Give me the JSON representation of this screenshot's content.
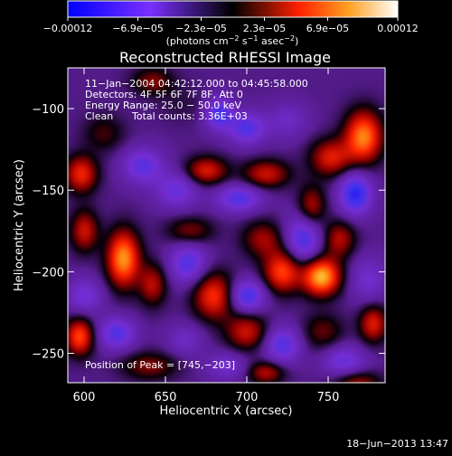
{
  "chart_data": {
    "type": "heatmap",
    "title": "Reconstructed RHESSI Image",
    "xlabel": "Heliocentric X (arcsec)",
    "ylabel": "Heliocentric Y (arcsec)",
    "xlim": [
      590,
      785
    ],
    "ylim": [
      -268,
      -75
    ],
    "x_ticks": [
      600,
      650,
      700,
      750
    ],
    "x_tick_labels": [
      "600",
      "650",
      "700",
      "750"
    ],
    "y_ticks": [
      -100,
      -150,
      -200,
      -250
    ],
    "y_tick_labels": [
      "−100",
      "−150",
      "−200",
      "−250"
    ],
    "colorbar": {
      "range": [
        -0.00012,
        0.00012
      ],
      "tick_values": [
        -0.00012,
        -6.9e-05,
        -2.3e-05,
        2.3e-05,
        6.9e-05,
        0.00012
      ],
      "tick_labels": [
        "−0.00012",
        "−6.9e−05",
        "−2.3e−05",
        "2.3e−05",
        "6.9e−05",
        "0.00012"
      ],
      "unit_prefix": "(photons cm",
      "unit_exp1": "−2",
      "unit_mid": " s",
      "unit_exp2": "−1",
      "unit_mid2": " asec",
      "unit_exp3": "−2",
      "unit_suffix": ")",
      "colormap": "rhessi-blue-purple-black-red-yellow-white"
    },
    "annotations": {
      "time_range": "11−Jan−2004 04:42:12.000 to 04:45:58.000",
      "detectors": "Detectors: 4F 5F 6F 7F 8F, Att 0",
      "energy_range": "Energy Range: 25.0 − 50.0 keV",
      "clean_label": "Clean",
      "total_counts": "Total counts: 3.36E+03",
      "peak_position": "Position of Peak = [745,−203]"
    },
    "peak": {
      "x": 745,
      "y": -203
    },
    "grid": false,
    "features": [
      {
        "x": 642,
        "y": -83,
        "amp": 0.35,
        "sx": 9,
        "sy": 6
      },
      {
        "x": 683,
        "y": -103,
        "amp": -0.55,
        "sx": 6,
        "sy": 7
      },
      {
        "x": 700,
        "y": -112,
        "amp": -0.5,
        "sx": 8,
        "sy": 7
      },
      {
        "x": 725,
        "y": -107,
        "amp": -0.25,
        "sx": 9,
        "sy": 8
      },
      {
        "x": 660,
        "y": -97,
        "amp": 0.1,
        "sx": 10,
        "sy": 8
      },
      {
        "x": 772,
        "y": -117,
        "amp": 0.85,
        "sx": 8,
        "sy": 11
      },
      {
        "x": 752,
        "y": -130,
        "amp": 0.55,
        "sx": 9,
        "sy": 8
      },
      {
        "x": 612,
        "y": -115,
        "amp": 0.25,
        "sx": 9,
        "sy": 8
      },
      {
        "x": 636,
        "y": -135,
        "amp": -0.45,
        "sx": 9,
        "sy": 8
      },
      {
        "x": 657,
        "y": -150,
        "amp": -0.4,
        "sx": 9,
        "sy": 8
      },
      {
        "x": 675,
        "y": -138,
        "amp": 0.55,
        "sx": 9,
        "sy": 6
      },
      {
        "x": 712,
        "y": -140,
        "amp": 0.5,
        "sx": 10,
        "sy": 6
      },
      {
        "x": 695,
        "y": -155,
        "amp": -0.5,
        "sx": 10,
        "sy": 6
      },
      {
        "x": 740,
        "y": -160,
        "amp": 0.45,
        "sx": 6,
        "sy": 9
      },
      {
        "x": 767,
        "y": -152,
        "amp": -0.7,
        "sx": 7,
        "sy": 9
      },
      {
        "x": 757,
        "y": -180,
        "amp": 0.45,
        "sx": 7,
        "sy": 8
      },
      {
        "x": 735,
        "y": -180,
        "amp": -0.55,
        "sx": 8,
        "sy": 11
      },
      {
        "x": 710,
        "y": -180,
        "amp": 0.4,
        "sx": 9,
        "sy": 8
      },
      {
        "x": 722,
        "y": -200,
        "amp": 0.7,
        "sx": 8,
        "sy": 9
      },
      {
        "x": 746,
        "y": -203,
        "amp": 1.0,
        "sx": 8,
        "sy": 8
      },
      {
        "x": 775,
        "y": -205,
        "amp": -0.3,
        "sx": 8,
        "sy": 10
      },
      {
        "x": 598,
        "y": -140,
        "amp": 0.6,
        "sx": 7,
        "sy": 8
      },
      {
        "x": 600,
        "y": -175,
        "amp": 0.5,
        "sx": 6,
        "sy": 9
      },
      {
        "x": 624,
        "y": -192,
        "amp": 0.9,
        "sx": 7,
        "sy": 12
      },
      {
        "x": 642,
        "y": -208,
        "amp": 0.45,
        "sx": 6,
        "sy": 9
      },
      {
        "x": 680,
        "y": -215,
        "amp": 0.65,
        "sx": 9,
        "sy": 10
      },
      {
        "x": 664,
        "y": -195,
        "amp": -0.5,
        "sx": 8,
        "sy": 9
      },
      {
        "x": 700,
        "y": -215,
        "amp": -0.6,
        "sx": 8,
        "sy": 7
      },
      {
        "x": 665,
        "y": -175,
        "amp": 0.35,
        "sx": 10,
        "sy": 6
      },
      {
        "x": 600,
        "y": -215,
        "amp": -0.35,
        "sx": 8,
        "sy": 8
      },
      {
        "x": 597,
        "y": -240,
        "amp": 0.7,
        "sx": 6,
        "sy": 8
      },
      {
        "x": 620,
        "y": -238,
        "amp": -0.5,
        "sx": 8,
        "sy": 7
      },
      {
        "x": 640,
        "y": -258,
        "amp": 0.35,
        "sx": 12,
        "sy": 6
      },
      {
        "x": 700,
        "y": -237,
        "amp": 0.5,
        "sx": 9,
        "sy": 8
      },
      {
        "x": 722,
        "y": -245,
        "amp": -0.5,
        "sx": 8,
        "sy": 8
      },
      {
        "x": 747,
        "y": -237,
        "amp": 0.3,
        "sx": 9,
        "sy": 8
      },
      {
        "x": 760,
        "y": -255,
        "amp": -0.4,
        "sx": 9,
        "sy": 7
      },
      {
        "x": 778,
        "y": -232,
        "amp": 0.55,
        "sx": 6,
        "sy": 8
      },
      {
        "x": 688,
        "y": -258,
        "amp": -0.3,
        "sx": 9,
        "sy": 6
      },
      {
        "x": 712,
        "y": -262,
        "amp": 0.45,
        "sx": 8,
        "sy": 5
      },
      {
        "x": 768,
        "y": -268,
        "amp": 0.4,
        "sx": 10,
        "sy": 5
      },
      {
        "x": 662,
        "y": -242,
        "amp": -0.25,
        "sx": 8,
        "sy": 7
      }
    ]
  },
  "footer": {
    "date": "18−Jun−2013 13:47"
  }
}
